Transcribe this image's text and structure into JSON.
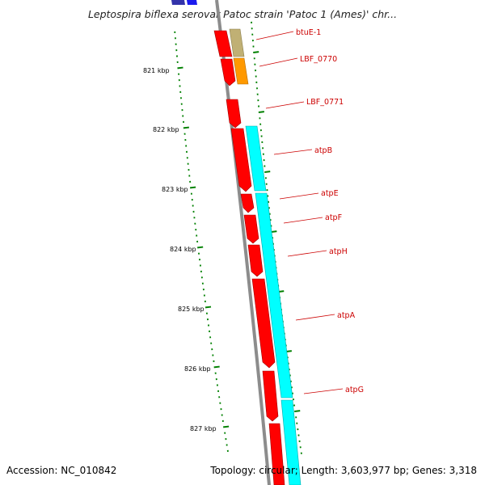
{
  "title": "Leptospira biflexa serovar Patoc strain 'Patoc 1 (Ames)' chr...",
  "accession": "Accession: NC_010842",
  "summary": "Topology: circular; Length: 3,603,977 bp; Genes: 3,318",
  "colors": {
    "backbone": "#8c8c8c",
    "forward_gene": "#ff0000",
    "reverse_gene": "#00ffff",
    "rrna_like": "#c8b878",
    "misc_gene": "#ff9900",
    "upstream_gene": "#3333cc",
    "tick": "#008000",
    "label": "#cc0000"
  },
  "ticks": [
    "821 kbp",
    "822 kbp",
    "823 kbp",
    "824 kbp",
    "825 kbp",
    "826 kbp",
    "827 kbp"
  ],
  "genes": [
    "btuE-1",
    "LBF_0770",
    "LBF_0771",
    "atpB",
    "atpE",
    "atpF",
    "atpH",
    "atpA",
    "atpG"
  ]
}
